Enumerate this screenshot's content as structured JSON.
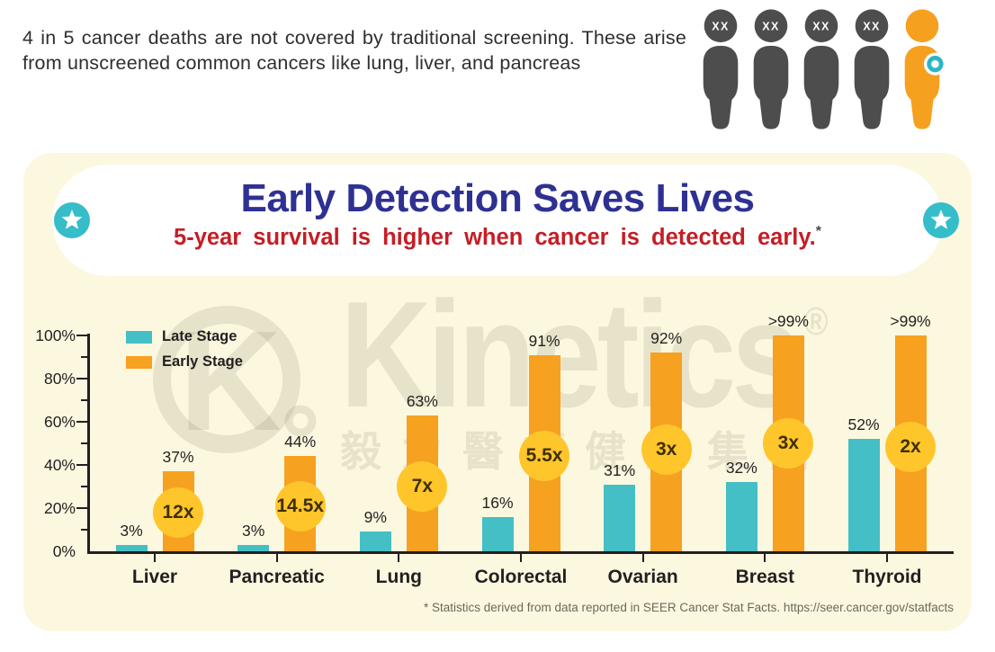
{
  "header": {
    "paragraph": "4 in 5 cancer deaths are not covered by traditional screening. These arise from unscreened common cancers like lung, liver, and pancreas",
    "figures": {
      "total": 5,
      "crossed": 4,
      "head_label": "XX"
    }
  },
  "banner": {
    "title": "Early Detection Saves Lives",
    "subtitle": "5-year survival is higher when cancer is detected early.",
    "footnote_marker": "*"
  },
  "watermark": {
    "brand": "Kinetics",
    "registered": "®",
    "chinese": "毅力醫護健康集團"
  },
  "colors": {
    "panel_cream": "#FCF8DF",
    "title_blue": "#2E3192",
    "subtitle_red": "#C41E25",
    "late_stage_teal": "#45BFC6",
    "early_stage_orange": "#F6A120",
    "multiplier_yellow": "#FFC62B",
    "figure_gray": "#4D4D4D",
    "figure_orange": "#F6A01F",
    "badge_ring_teal": "#2CB5C6",
    "star_teal": "#35BDC9",
    "axis_dark": "#231F20"
  },
  "chart_data": {
    "type": "bar",
    "title": "5-year survival by cancer type, late vs early stage",
    "categories": [
      "Liver",
      "Pancreatic",
      "Lung",
      "Colorectal",
      "Ovarian",
      "Breast",
      "Thyroid"
    ],
    "series": [
      {
        "name": "Late Stage",
        "color": "#45BFC6",
        "values": [
          3,
          3,
          9,
          16,
          31,
          32,
          52
        ],
        "labels": [
          "3%",
          "3%",
          "9%",
          "16%",
          "31%",
          "32%",
          "52%"
        ]
      },
      {
        "name": "Early Stage",
        "color": "#F6A120",
        "values": [
          37,
          44,
          63,
          91,
          92,
          100,
          100
        ],
        "labels": [
          "37%",
          "44%",
          "63%",
          "91%",
          "92%",
          ">99%",
          ">99%"
        ]
      }
    ],
    "multipliers": {
      "labels": [
        "12x",
        "14.5x",
        "7x",
        "5.5x",
        "3x",
        "3x",
        "2x"
      ],
      "center_pct": [
        18,
        21,
        30,
        44,
        47,
        50,
        48.5
      ],
      "color": "#FFC62B",
      "text_color": "#3E3000"
    },
    "y_axis": {
      "min": 0,
      "max": 100,
      "tick_labels": [
        "0%",
        "20%",
        "40%",
        "60%",
        "80%",
        "100%"
      ],
      "minor_step": 10
    },
    "legend_position": "top-left",
    "grid": false,
    "footnote": "* Statistics derived from data reported in SEER Cancer Stat Facts. https://seer.cancer.gov/statfacts"
  }
}
